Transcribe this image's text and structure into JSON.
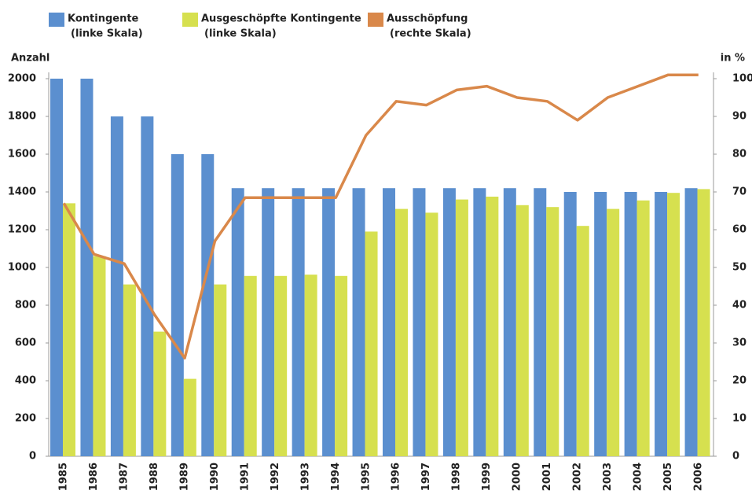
{
  "chart_data": {
    "type": "bar-line",
    "y_label": "Anzahl",
    "y2_label": "in %",
    "categories": [
      "1985",
      "1986",
      "1987",
      "1988",
      "1989",
      "1990",
      "1991",
      "1992",
      "1993",
      "1994",
      "1995",
      "1996",
      "1997",
      "1998",
      "1999",
      "2000",
      "2001",
      "2002",
      "2003",
      "2004",
      "2005",
      "2006"
    ],
    "series": [
      {
        "name": "Kontingente",
        "scale_note": "(linke Skala)",
        "kind": "bar",
        "color": "#5b8fcf",
        "values": [
          2000,
          2000,
          1800,
          1800,
          1600,
          1600,
          1420,
          1420,
          1420,
          1420,
          1420,
          1420,
          1420,
          1420,
          1420,
          1420,
          1420,
          1400,
          1400,
          1400,
          1400,
          1420
        ]
      },
      {
        "name": "Ausgeschöpfte Kontingente",
        "scale_note": "(linke Skala)",
        "kind": "bar",
        "color": "#d6e04f",
        "values": [
          1340,
          1060,
          910,
          660,
          410,
          910,
          955,
          955,
          962,
          955,
          1190,
          1310,
          1290,
          1360,
          1375,
          1330,
          1320,
          1220,
          1310,
          1355,
          1395,
          1415
        ]
      },
      {
        "name": "Ausschöpfung",
        "scale_note": "(rechte Skala)",
        "kind": "line",
        "axis": "y2",
        "color": "#d9884a",
        "values": [
          67,
          53.5,
          51,
          37.5,
          26,
          57,
          68.5,
          68.5,
          68.5,
          68.5,
          85,
          94,
          93,
          97,
          98,
          95,
          94,
          89,
          95,
          98,
          101,
          101
        ]
      }
    ],
    "ylim": [
      0,
      2000
    ],
    "yticks": [
      0,
      200,
      400,
      600,
      800,
      1000,
      1200,
      1400,
      1600,
      1800,
      2000
    ],
    "y2lim": [
      0,
      100
    ],
    "y2ticks": [
      0,
      10,
      20,
      30,
      40,
      50,
      60,
      70,
      80,
      90,
      100
    ],
    "grid": false
  }
}
